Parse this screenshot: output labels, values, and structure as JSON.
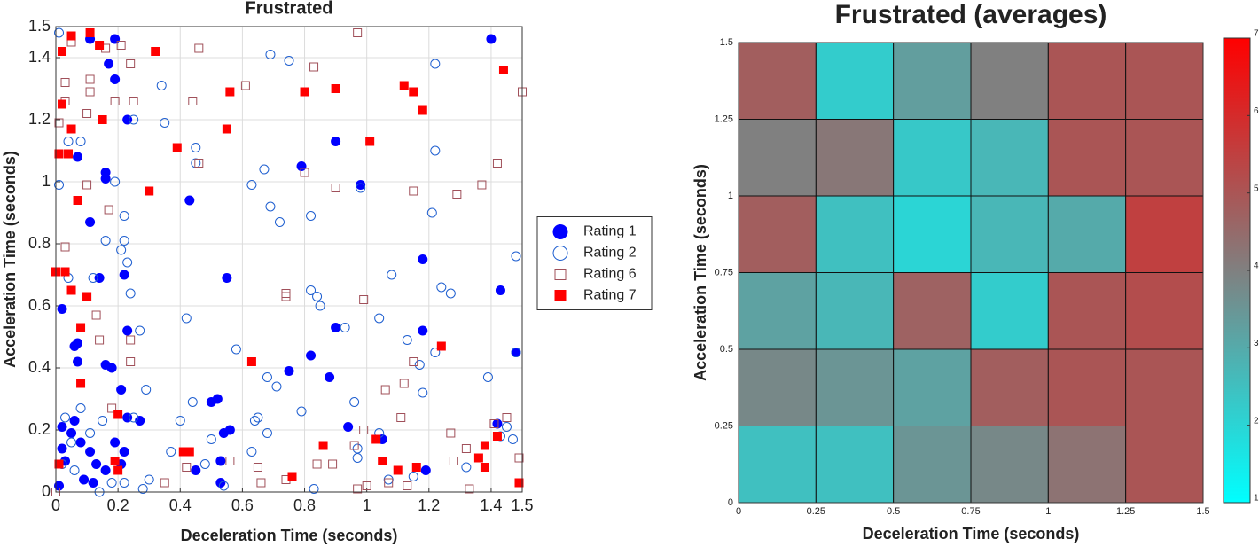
{
  "chart_data": [
    {
      "type": "scatter",
      "title": "Frustrated",
      "x_label": "Deceleration Time (seconds)",
      "y_label": "Acceleration Time (seconds)",
      "xlim": [
        0,
        1.5
      ],
      "ylim": [
        0,
        1.5
      ],
      "xticks": [
        0,
        0.2,
        0.4,
        0.6,
        0.8,
        1,
        1.2,
        1.4,
        1.5
      ],
      "yticks": [
        0,
        0.2,
        0.4,
        0.6,
        0.8,
        1,
        1.2,
        1.4,
        1.5
      ],
      "grid": true,
      "legend": "east outside",
      "series": [
        {
          "name": "Rating 1",
          "color": "#0000ff",
          "marker": "circle",
          "filled": true,
          "x": [
            1.4,
            0.11,
            0.19,
            0.17,
            0.19,
            0.23,
            0.16,
            0.16,
            0.07,
            0.9,
            0.79,
            0.98,
            0.43,
            0.11,
            1.18,
            1.43,
            0.55,
            0.02,
            0.22,
            0.14,
            0.9,
            0.23,
            1.18,
            0.07,
            0.06,
            0.82,
            1.48,
            0.16,
            0.18,
            0.75,
            0.07,
            0.88,
            0.21,
            0.52,
            0.5,
            0.23,
            0.27,
            0.94,
            1.05,
            1.42,
            0.56,
            0.54,
            0.45,
            0.53,
            0.53,
            1.19,
            0.01,
            0.02,
            0.05,
            0.08,
            0.11,
            0.03,
            0.13,
            0.16,
            0.09,
            0.19,
            0.22,
            0.06,
            0.12,
            0.21,
            0.02
          ],
          "values": [
            1.46,
            1.46,
            1.46,
            1.38,
            1.33,
            1.2,
            1.03,
            1.01,
            1.08,
            1.13,
            1.05,
            0.99,
            0.94,
            0.87,
            0.75,
            0.65,
            0.69,
            0.59,
            0.7,
            0.69,
            0.53,
            0.52,
            0.52,
            0.48,
            0.47,
            0.44,
            0.45,
            0.41,
            0.4,
            0.39,
            0.42,
            0.37,
            0.33,
            0.3,
            0.29,
            0.24,
            0.23,
            0.21,
            0.17,
            0.22,
            0.2,
            0.19,
            0.07,
            0.1,
            0.03,
            0.07,
            0.02,
            0.21,
            0.19,
            0.16,
            0.13,
            0.1,
            0.09,
            0.07,
            0.04,
            0.16,
            0.13,
            0.23,
            0.03,
            0.09,
            0.14
          ]
        },
        {
          "name": "Rating 2",
          "color": "#1f5fd0",
          "marker": "circle",
          "filled": false,
          "x": [
            0.01,
            0.01,
            0.04,
            0.08,
            0.25,
            0.34,
            0.35,
            0.45,
            0.45,
            0.69,
            0.75,
            0.67,
            0.63,
            0.69,
            0.72,
            0.82,
            0.98,
            1.22,
            1.22,
            1.21,
            1.48,
            0.22,
            0.19,
            0.16,
            0.22,
            0.23,
            0.21,
            0.12,
            0.24,
            0.04,
            0.82,
            0.84,
            0.85,
            1.04,
            1.08,
            1.24,
            1.27,
            0.42,
            0.27,
            0.58,
            0.93,
            1.13,
            1.17,
            1.22,
            1.39,
            1.48,
            1.18,
            0.68,
            0.71,
            0.79,
            0.44,
            0.29,
            0.4,
            0.65,
            0.64,
            0.68,
            0.63,
            0.5,
            0.48,
            0.96,
            0.97,
            1.04,
            0.97,
            1.07,
            1.15,
            1.32,
            1.45,
            1.47,
            1.43,
            0.37,
            0.3,
            0.83,
            0.54,
            0.28,
            0.03,
            0.08,
            0.15,
            0.11,
            0.02,
            0.06,
            0.18,
            0.22,
            0.25,
            0.05,
            0.14
          ],
          "values": [
            1.48,
            0.99,
            1.13,
            1.13,
            1.2,
            1.31,
            1.19,
            1.11,
            1.06,
            1.41,
            1.39,
            1.04,
            0.99,
            0.92,
            0.87,
            0.89,
            0.98,
            1.38,
            1.1,
            0.9,
            0.76,
            0.89,
            1.0,
            0.81,
            0.81,
            0.74,
            0.78,
            0.69,
            0.64,
            0.69,
            0.65,
            0.63,
            0.6,
            0.56,
            0.7,
            0.66,
            0.64,
            0.56,
            0.52,
            0.46,
            0.53,
            0.49,
            0.41,
            0.45,
            0.37,
            0.45,
            0.32,
            0.37,
            0.34,
            0.26,
            0.29,
            0.33,
            0.23,
            0.24,
            0.23,
            0.19,
            0.13,
            0.17,
            0.09,
            0.29,
            0.14,
            0.19,
            0.11,
            0.04,
            0.05,
            0.08,
            0.21,
            0.17,
            0.18,
            0.13,
            0.04,
            0.01,
            0.02,
            0.01,
            0.24,
            0.27,
            0.23,
            0.19,
            0.09,
            0.07,
            0.03,
            0.03,
            0.24,
            0.16,
            0.0
          ]
        },
        {
          "name": "Rating 6",
          "color": "#a0505a",
          "marker": "square",
          "filled": false,
          "x": [
            0.03,
            0.03,
            0.01,
            0.05,
            0.1,
            0.11,
            0.11,
            0.16,
            0.21,
            0.24,
            0.19,
            0.25,
            0.46,
            0.44,
            0.61,
            0.83,
            0.97,
            0.46,
            0.8,
            0.9,
            1.15,
            1.29,
            1.37,
            1.42,
            1.5,
            0.1,
            0.17,
            0.03,
            0.1,
            0.13,
            0.14,
            0.24,
            0.18,
            0.24,
            0.74,
            0.74,
            0.99,
            1.15,
            1.12,
            1.06,
            1.11,
            1.27,
            1.45,
            1.41,
            0.99,
            0.96,
            0.89,
            1.0,
            0.97,
            1.07,
            1.13,
            1.33,
            1.49,
            1.28,
            1.32,
            0.84,
            0.74,
            0.66,
            0.65,
            0.56,
            0.42,
            0.35,
            0.42,
            0.0
          ],
          "values": [
            1.32,
            1.26,
            1.19,
            1.45,
            1.22,
            1.33,
            1.29,
            1.43,
            1.44,
            1.38,
            1.26,
            1.26,
            1.43,
            1.26,
            1.31,
            1.37,
            1.48,
            1.06,
            1.03,
            0.98,
            0.97,
            0.96,
            0.99,
            1.06,
            1.29,
            0.99,
            0.91,
            0.79,
            0.63,
            0.57,
            0.49,
            0.49,
            0.27,
            0.42,
            0.64,
            0.63,
            0.62,
            0.42,
            0.35,
            0.33,
            0.24,
            0.19,
            0.24,
            0.22,
            0.2,
            0.15,
            0.09,
            0.02,
            0.01,
            0.03,
            0.02,
            0.01,
            0.11,
            0.1,
            0.14,
            0.09,
            0.04,
            0.03,
            0.08,
            0.1,
            0.08,
            0.03,
            0.13,
            0.0
          ]
        },
        {
          "name": "Rating 7",
          "color": "#ff0000",
          "marker": "square",
          "filled": true,
          "x": [
            0.05,
            0.11,
            0.02,
            0.14,
            0.32,
            1.44,
            0.02,
            0.15,
            0.05,
            0.56,
            0.8,
            0.9,
            1.12,
            1.15,
            1.18,
            1.01,
            0.55,
            0.39,
            0.01,
            0.04,
            0.3,
            0.07,
            0.0,
            0.03,
            0.05,
            0.1,
            0.08,
            0.63,
            1.24,
            0.08,
            0.2,
            0.41,
            0.43,
            0.86,
            1.03,
            1.05,
            1.1,
            1.16,
            1.38,
            1.36,
            1.38,
            1.42,
            1.49,
            0.76,
            0.2,
            0.19,
            0.01
          ],
          "values": [
            1.47,
            1.48,
            1.42,
            1.44,
            1.42,
            1.36,
            1.25,
            1.2,
            1.17,
            1.29,
            1.29,
            1.3,
            1.31,
            1.29,
            1.23,
            1.13,
            1.17,
            1.11,
            1.09,
            1.09,
            0.97,
            0.94,
            0.71,
            0.71,
            0.65,
            0.63,
            0.53,
            0.42,
            0.47,
            0.35,
            0.25,
            0.13,
            0.13,
            0.15,
            0.17,
            0.1,
            0.07,
            0.08,
            0.08,
            0.11,
            0.15,
            0.18,
            0.03,
            0.05,
            0.07,
            0.1,
            0.09
          ]
        }
      ]
    },
    {
      "type": "heatmap",
      "title": "Frustrated (averages)",
      "x_label": "Deceleration Time (seconds)",
      "y_label": "Acceleration Time (seconds)",
      "xlim": [
        0,
        1.5
      ],
      "ylim": [
        0,
        1.5
      ],
      "xticks": [
        0,
        0.25,
        0.5,
        0.75,
        1,
        1.25,
        1.5
      ],
      "yticks": [
        0,
        0.25,
        0.5,
        0.75,
        1,
        1.25,
        1.5
      ],
      "xbins": [
        0,
        0.25,
        0.5,
        0.75,
        1,
        1.25,
        1.5
      ],
      "ybins": [
        0,
        0.25,
        0.5,
        0.75,
        1,
        1.25,
        1.5
      ],
      "z": [
        [
          2.5,
          2.5,
          3.5,
          3.8,
          4.3,
          5.0
        ],
        [
          3.8,
          3.5,
          3.2,
          4.8,
          5.0,
          5.0
        ],
        [
          3.2,
          2.7,
          4.7,
          2.2,
          5.0,
          5.2
        ],
        [
          4.8,
          2.5,
          2.0,
          2.7,
          3.0,
          5.5
        ],
        [
          4.0,
          4.2,
          2.3,
          2.7,
          5.0,
          5.0
        ],
        [
          4.8,
          2.2,
          3.3,
          4.0,
          5.0,
          5.0
        ]
      ],
      "clim": [
        1,
        7
      ],
      "colorbar_ticks": [
        1,
        2,
        3,
        4,
        5,
        6,
        7
      ],
      "colormap": [
        "#00ffff",
        "#808080",
        "#ff0000"
      ]
    }
  ]
}
